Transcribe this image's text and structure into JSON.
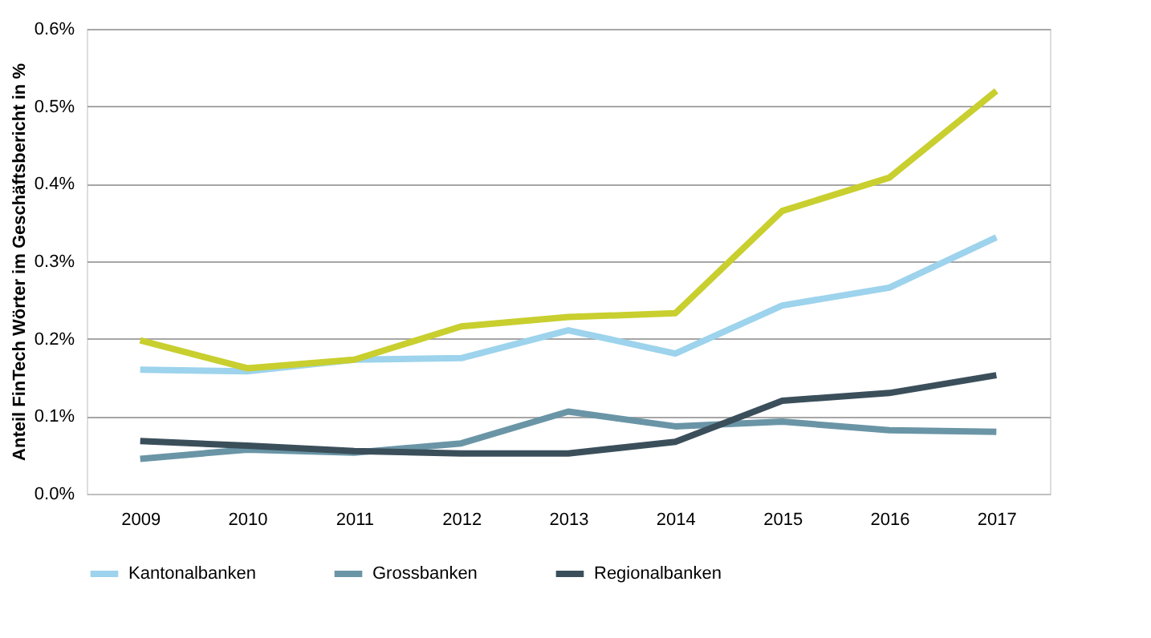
{
  "chart_data": {
    "type": "line",
    "ylabel": "Anteil FinTech Wörter im Geschäftsbericht in %",
    "categories": [
      "2009",
      "2010",
      "2011",
      "2012",
      "2013",
      "2014",
      "2015",
      "2016",
      "2017"
    ],
    "series": [
      {
        "name": "Kantonalbanken",
        "color": "#9dd3ec",
        "values": [
          0.16,
          0.158,
          0.173,
          0.175,
          0.211,
          0.181,
          0.243,
          0.266,
          0.331
        ]
      },
      {
        "name": "Grossbanken",
        "color": "#6a95a6",
        "values": [
          0.045,
          0.057,
          0.053,
          0.065,
          0.106,
          0.087,
          0.093,
          0.082,
          0.08
        ]
      },
      {
        "name": "Regionalbanken",
        "color": "#3b4f5b",
        "values": [
          0.068,
          0.062,
          0.055,
          0.052,
          0.052,
          0.067,
          0.12,
          0.13,
          0.153
        ]
      },
      {
        "color": "#c8cf2e",
        "values": [
          0.198,
          0.162,
          0.173,
          0.216,
          0.228,
          0.233,
          0.365,
          0.408,
          0.52
        ]
      }
    ],
    "ylim": [
      0,
      0.6
    ],
    "yticks": [
      {
        "value": 0,
        "label": "0.0%"
      },
      {
        "value": 0.1,
        "label": "0.1%"
      },
      {
        "value": 0.2,
        "label": "0.2%"
      },
      {
        "value": 0.3,
        "label": "0.3%"
      },
      {
        "value": 0.4,
        "label": "0.4%"
      },
      {
        "value": 0.5,
        "label": "0.5%"
      },
      {
        "value": 0.6,
        "label": "0.6%"
      }
    ],
    "grid": "y",
    "legend": "bottom",
    "marker": "none",
    "line_style": "solid"
  }
}
